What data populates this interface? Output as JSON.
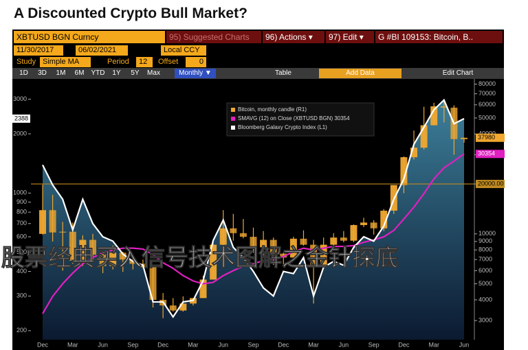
{
  "title": "A Discounted Crypto Bull Market?",
  "toolbar": {
    "ticker": "XBTUSD BGN Curncy",
    "suggested": "95) Suggested Charts",
    "actions": "96) Actions ▾",
    "edit": "97) Edit ▾",
    "security": "G #BI 109153: Bitcoin, B..",
    "start_date": "11/30/2017",
    "end_date": "06/02/2021",
    "currency": "Local CCY",
    "study_label": "Study",
    "study": "Simple MA",
    "period_label": "Period",
    "period": "12",
    "offset_label": "Offset",
    "offset": "0",
    "ranges": [
      "1D",
      "3D",
      "1M",
      "6M",
      "YTD",
      "1Y",
      "5Y",
      "Max"
    ],
    "frequency": "Monthly ▼",
    "table": "Table",
    "add_data": "Add Data",
    "edit_chart": "Edit Chart"
  },
  "watermark": "股票经典买入信号技术图解之金针探底",
  "chart_data": {
    "type": "candlestick",
    "categories": [
      "Dec",
      null,
      null,
      "Mar",
      null,
      null,
      "Jun",
      null,
      null,
      "Sep",
      null,
      null,
      "Dec",
      null,
      null,
      "Mar",
      null,
      null,
      "Jun",
      null,
      null,
      "Sep",
      null,
      null,
      "Dec",
      null,
      null,
      "Mar",
      null,
      null,
      "Jun",
      null,
      null,
      "Sep",
      null,
      null,
      "Dec",
      null,
      null,
      "Mar",
      null,
      null,
      "Jun"
    ],
    "series": [
      {
        "name": "Bitcoin, monthly candle (R1)",
        "type": "candlestick",
        "axis": "y2",
        "color": "#f0a830",
        "open": [
          10000,
          13900,
          10200,
          10300,
          6900,
          9200,
          7500,
          6400,
          7700,
          7000,
          6600,
          6300,
          4000,
          3700,
          3450,
          3800,
          4100,
          5300,
          8600,
          10800,
          10100,
          9600,
          8300,
          9200,
          7600,
          7200,
          9350,
          8600,
          6400,
          8600,
          9500,
          9100,
          11300,
          11700,
          10800,
          13800,
          19700,
          29000,
          33100,
          45200,
          58800,
          57700,
          37300
        ],
        "high": [
          19800,
          17200,
          11800,
          11700,
          9800,
          10000,
          7800,
          8500,
          7800,
          7400,
          7000,
          6500,
          4400,
          4100,
          4200,
          4100,
          5600,
          9000,
          13900,
          13200,
          12300,
          10900,
          10400,
          9500,
          7700,
          9600,
          10500,
          9200,
          9500,
          10100,
          10400,
          11400,
          12500,
          12100,
          14100,
          19500,
          29300,
          42000,
          58400,
          61800,
          64900,
          59600,
          38000
        ],
        "low": [
          9900,
          9000,
          6000,
          6600,
          6400,
          7000,
          5800,
          6100,
          5900,
          6100,
          6200,
          3600,
          3100,
          3400,
          3400,
          3700,
          4100,
          5300,
          7500,
          9100,
          9400,
          7700,
          7300,
          6500,
          6400,
          6900,
          8500,
          3800,
          6200,
          8100,
          8900,
          8900,
          11000,
          9900,
          10400,
          13200,
          17600,
          28100,
          32300,
          45000,
          47000,
          30000,
          35500
        ],
        "close": [
          13900,
          10200,
          10300,
          6900,
          9200,
          7500,
          6400,
          7700,
          7000,
          6600,
          6300,
          4000,
          3700,
          3450,
          3800,
          4100,
          5300,
          8600,
          10800,
          10100,
          9600,
          8300,
          9200,
          7600,
          7200,
          9350,
          8600,
          6400,
          8600,
          9500,
          9100,
          11300,
          11700,
          10800,
          13800,
          19700,
          29000,
          33100,
          45200,
          58800,
          57700,
          37300,
          37980
        ]
      },
      {
        "name": "SMAVG (12)  on Close (XBTUSD BGN) 30354",
        "type": "line",
        "axis": "y2",
        "color": "#e020c0",
        "values": [
          3300,
          4200,
          5000,
          5800,
          6600,
          7200,
          7700,
          8000,
          8200,
          8200,
          8100,
          7500,
          6700,
          6200,
          5600,
          5200,
          5000,
          5100,
          5600,
          6000,
          6400,
          6600,
          6900,
          7000,
          7300,
          7800,
          8200,
          8000,
          8200,
          8400,
          8400,
          8500,
          8900,
          9200,
          9600,
          10500,
          12300,
          14500,
          17500,
          21500,
          25000,
          27500,
          30354
        ]
      },
      {
        "name": "Bloomberg Galaxy Crypto Index (L1)",
        "type": "area",
        "axis": "y",
        "color": "#ffffff",
        "values": [
          1390,
          1100,
          930,
          650,
          930,
          700,
          600,
          570,
          490,
          450,
          430,
          280,
          280,
          235,
          280,
          285,
          360,
          575,
          730,
          530,
          470,
          400,
          330,
          300,
          400,
          390,
          470,
          300,
          420,
          450,
          430,
          530,
          600,
          570,
          680,
          930,
          1180,
          1770,
          2160,
          2650,
          2970,
          2250,
          2388
        ]
      }
    ],
    "ylim": [
      180,
      3800
    ],
    "ylog": true,
    "yticks": [
      200,
      300,
      400,
      500,
      600,
      700,
      800,
      900,
      1000,
      2000,
      3000
    ],
    "y2lim": [
      2300,
      86000
    ],
    "y2log": true,
    "y2ticks": [
      3000,
      4000,
      5000,
      6000,
      7000,
      8000,
      9000,
      10000,
      20000,
      30000,
      40000,
      50000,
      60000,
      70000,
      80000
    ],
    "hline": {
      "value": 20000,
      "label": "20000.00",
      "axis": "y2",
      "color": "#c08a20"
    },
    "grid": false,
    "legend": "top-center"
  }
}
